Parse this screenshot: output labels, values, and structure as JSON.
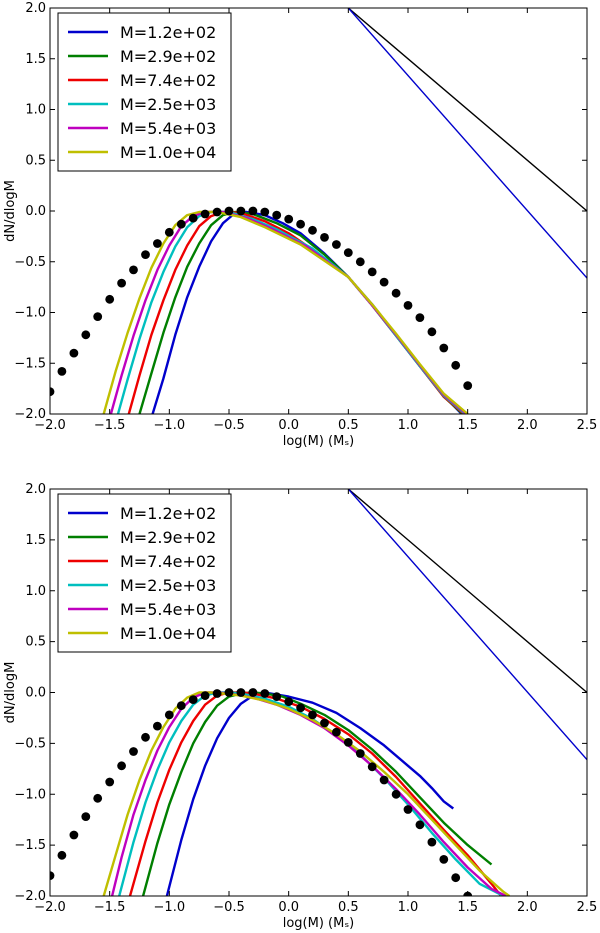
{
  "chart_data": [
    {
      "type": "line",
      "panel": "top",
      "xlabel": "log(M) (Mₛ)",
      "ylabel": "dN/dlogM",
      "xlim": [
        -2.0,
        2.5
      ],
      "ylim": [
        -2.0,
        2.0
      ],
      "xticks": [
        "−2.0",
        "−1.5",
        "−1.0",
        "−0.5",
        "0.0",
        "0.5",
        "1.0",
        "1.5",
        "2.0",
        "2.5"
      ],
      "yticks": [
        "2.0",
        "1.5",
        "1.0",
        "0.5",
        "0.0",
        "−0.5",
        "−1.0",
        "−1.5",
        "−2.0"
      ],
      "legend_position": "upper-left",
      "series": [
        {
          "name": "M=1.2e+02",
          "color": "#0000cc",
          "x": [
            -1.14,
            -1.05,
            -0.95,
            -0.85,
            -0.75,
            -0.65,
            -0.55,
            -0.45,
            -0.35,
            -0.2,
            -0.05,
            0.1,
            0.3,
            0.5,
            0.7,
            0.9,
            1.1,
            1.3,
            1.45
          ],
          "y": [
            -2.0,
            -1.65,
            -1.22,
            -0.85,
            -0.55,
            -0.3,
            -0.12,
            -0.02,
            -0.01,
            -0.04,
            -0.12,
            -0.22,
            -0.42,
            -0.65,
            -0.92,
            -1.22,
            -1.52,
            -1.82,
            -2.0
          ]
        },
        {
          "name": "M=2.9e+02",
          "color": "#007f00",
          "x": [
            -1.25,
            -1.15,
            -1.05,
            -0.95,
            -0.85,
            -0.75,
            -0.65,
            -0.55,
            -0.45,
            -0.3,
            -0.1,
            0.1,
            0.3,
            0.5,
            0.7,
            0.9,
            1.1,
            1.3,
            1.46
          ],
          "y": [
            -2.0,
            -1.6,
            -1.2,
            -0.85,
            -0.55,
            -0.32,
            -0.14,
            -0.04,
            -0.01,
            -0.03,
            -0.12,
            -0.24,
            -0.43,
            -0.65,
            -0.93,
            -1.23,
            -1.53,
            -1.83,
            -2.0
          ]
        },
        {
          "name": "M=7.4e+02",
          "color": "#ee0000",
          "x": [
            -1.34,
            -1.25,
            -1.15,
            -1.05,
            -0.95,
            -0.85,
            -0.75,
            -0.65,
            -0.55,
            -0.4,
            -0.2,
            0.0,
            0.2,
            0.5,
            0.7,
            0.9,
            1.1,
            1.3,
            1.47
          ],
          "y": [
            -2.0,
            -1.62,
            -1.22,
            -0.88,
            -0.58,
            -0.34,
            -0.15,
            -0.05,
            -0.01,
            -0.02,
            -0.1,
            -0.22,
            -0.38,
            -0.65,
            -0.93,
            -1.23,
            -1.53,
            -1.83,
            -2.0
          ]
        },
        {
          "name": "M=2.5e+03",
          "color": "#00bfbf",
          "x": [
            -1.43,
            -1.35,
            -1.25,
            -1.15,
            -1.05,
            -0.95,
            -0.85,
            -0.75,
            -0.65,
            -0.5,
            -0.3,
            -0.1,
            0.2,
            0.5,
            0.7,
            0.9,
            1.1,
            1.3,
            1.48
          ],
          "y": [
            -2.0,
            -1.66,
            -1.26,
            -0.9,
            -0.6,
            -0.35,
            -0.16,
            -0.05,
            -0.01,
            -0.01,
            -0.08,
            -0.18,
            -0.37,
            -0.65,
            -0.93,
            -1.23,
            -1.53,
            -1.82,
            -2.0
          ]
        },
        {
          "name": "M=5.4e+03",
          "color": "#bf00bf",
          "x": [
            -1.49,
            -1.4,
            -1.3,
            -1.2,
            -1.1,
            -1.0,
            -0.9,
            -0.8,
            -0.7,
            -0.55,
            -0.35,
            -0.15,
            0.15,
            0.5,
            0.7,
            0.9,
            1.1,
            1.3,
            1.49
          ],
          "y": [
            -2.0,
            -1.62,
            -1.23,
            -0.88,
            -0.58,
            -0.34,
            -0.15,
            -0.05,
            -0.01,
            -0.01,
            -0.07,
            -0.17,
            -0.35,
            -0.65,
            -0.93,
            -1.22,
            -1.52,
            -1.81,
            -2.0
          ]
        },
        {
          "name": "M=1.0e+04",
          "color": "#bfbf00",
          "x": [
            -1.55,
            -1.45,
            -1.35,
            -1.25,
            -1.15,
            -1.05,
            -0.95,
            -0.85,
            -0.75,
            -0.6,
            -0.4,
            -0.2,
            0.1,
            0.5,
            0.7,
            0.9,
            1.1,
            1.3,
            1.5
          ],
          "y": [
            -2.0,
            -1.58,
            -1.2,
            -0.86,
            -0.56,
            -0.32,
            -0.14,
            -0.04,
            -0.01,
            -0.01,
            -0.06,
            -0.16,
            -0.33,
            -0.65,
            -0.92,
            -1.21,
            -1.51,
            -1.8,
            -2.0
          ]
        }
      ],
      "reference_lines": [
        {
          "name": "black-reference-line",
          "color": "#000000",
          "x": [
            0.5,
            2.5
          ],
          "y": [
            2.0,
            0.0
          ]
        },
        {
          "name": "blue-reference-line",
          "color": "#0000cc",
          "x": [
            0.5,
            2.5
          ],
          "y": [
            2.0,
            -0.66
          ]
        }
      ],
      "dots": {
        "name": "black-dots",
        "x": [
          -2.0,
          -1.9,
          -1.8,
          -1.7,
          -1.6,
          -1.5,
          -1.4,
          -1.3,
          -1.2,
          -1.1,
          -1.0,
          -0.9,
          -0.8,
          -0.7,
          -0.6,
          -0.5,
          -0.4,
          -0.3,
          -0.2,
          -0.1,
          0.0,
          0.1,
          0.2,
          0.3,
          0.4,
          0.5,
          0.6,
          0.7,
          0.8,
          0.9,
          1.0,
          1.1,
          1.2,
          1.3,
          1.4,
          1.5
        ],
        "y": [
          -1.78,
          -1.58,
          -1.4,
          -1.22,
          -1.04,
          -0.87,
          -0.71,
          -0.58,
          -0.43,
          -0.32,
          -0.21,
          -0.13,
          -0.07,
          -0.03,
          -0.01,
          0.0,
          0.0,
          0.0,
          -0.01,
          -0.04,
          -0.08,
          -0.13,
          -0.19,
          -0.26,
          -0.33,
          -0.41,
          -0.5,
          -0.6,
          -0.7,
          -0.81,
          -0.93,
          -1.05,
          -1.19,
          -1.35,
          -1.52,
          -1.72
        ]
      }
    },
    {
      "type": "line",
      "panel": "bottom",
      "xlabel": "log(M) (Mₛ)",
      "ylabel": "dN/dlogM",
      "xlim": [
        -2.0,
        2.5
      ],
      "ylim": [
        -2.0,
        2.0
      ],
      "xticks": [
        "−2.0",
        "−1.5",
        "−1.0",
        "−0.5",
        "0.0",
        "0.5",
        "1.0",
        "1.5",
        "2.0",
        "2.5"
      ],
      "yticks": [
        "2.0",
        "1.5",
        "1.0",
        "0.5",
        "0.0",
        "−0.5",
        "−1.0",
        "−1.5",
        "−2.0"
      ],
      "legend_position": "upper-left",
      "series": [
        {
          "name": "M=1.2e+02",
          "color": "#0000cc",
          "x": [
            -1.02,
            -0.9,
            -0.8,
            -0.7,
            -0.6,
            -0.5,
            -0.4,
            -0.3,
            -0.2,
            -0.1,
            0.0,
            0.2,
            0.4,
            0.6,
            0.8,
            1.0,
            1.1,
            1.2,
            1.3,
            1.38
          ],
          "y": [
            -2.0,
            -1.45,
            -1.05,
            -0.72,
            -0.45,
            -0.25,
            -0.11,
            -0.03,
            0.0,
            -0.02,
            -0.04,
            -0.1,
            -0.2,
            -0.35,
            -0.52,
            -0.72,
            -0.82,
            -0.94,
            -1.07,
            -1.14
          ]
        },
        {
          "name": "M=2.9e+02",
          "color": "#007f00",
          "x": [
            -1.22,
            -1.1,
            -1.0,
            -0.9,
            -0.8,
            -0.7,
            -0.6,
            -0.5,
            -0.4,
            -0.3,
            -0.2,
            -0.05,
            0.1,
            0.3,
            0.5,
            0.7,
            0.9,
            1.1,
            1.3,
            1.5,
            1.7
          ],
          "y": [
            -2.0,
            -1.48,
            -1.1,
            -0.78,
            -0.5,
            -0.29,
            -0.13,
            -0.04,
            -0.01,
            0.0,
            -0.01,
            -0.04,
            -0.11,
            -0.22,
            -0.37,
            -0.56,
            -0.78,
            -1.03,
            -1.28,
            -1.5,
            -1.69
          ]
        },
        {
          "name": "M=7.4e+02",
          "color": "#ee0000",
          "x": [
            -1.33,
            -1.2,
            -1.1,
            -1.0,
            -0.9,
            -0.8,
            -0.7,
            -0.6,
            -0.5,
            -0.4,
            -0.3,
            -0.1,
            0.1,
            0.3,
            0.5,
            0.7,
            0.9,
            1.1,
            1.3,
            1.5,
            1.7,
            1.78
          ],
          "y": [
            -2.0,
            -1.46,
            -1.08,
            -0.76,
            -0.49,
            -0.28,
            -0.12,
            -0.03,
            0.0,
            0.0,
            -0.01,
            -0.06,
            -0.14,
            -0.26,
            -0.41,
            -0.6,
            -0.83,
            -1.09,
            -1.35,
            -1.6,
            -1.88,
            -2.0
          ]
        },
        {
          "name": "M=2.5e+03",
          "color": "#00bfbf",
          "x": [
            -1.42,
            -1.3,
            -1.2,
            -1.1,
            -1.0,
            -0.9,
            -0.8,
            -0.7,
            -0.6,
            -0.5,
            -0.4,
            -0.2,
            0.0,
            0.2,
            0.4,
            0.6,
            0.8,
            1.0,
            1.2,
            1.4,
            1.6,
            1.8
          ],
          "y": [
            -2.0,
            -1.47,
            -1.08,
            -0.76,
            -0.49,
            -0.28,
            -0.12,
            -0.03,
            0.0,
            0.0,
            -0.01,
            -0.06,
            -0.14,
            -0.26,
            -0.42,
            -0.61,
            -0.84,
            -1.1,
            -1.38,
            -1.64,
            -1.88,
            -2.0
          ]
        },
        {
          "name": "M=5.4e+03",
          "color": "#bf00bf",
          "x": [
            -1.48,
            -1.4,
            -1.3,
            -1.2,
            -1.1,
            -1.0,
            -0.9,
            -0.8,
            -0.7,
            -0.6,
            -0.5,
            -0.3,
            -0.1,
            0.1,
            0.3,
            0.5,
            0.7,
            0.9,
            1.1,
            1.3,
            1.5,
            1.7,
            1.82
          ],
          "y": [
            -2.0,
            -1.62,
            -1.2,
            -0.86,
            -0.57,
            -0.34,
            -0.16,
            -0.05,
            0.0,
            0.0,
            -0.01,
            -0.05,
            -0.12,
            -0.22,
            -0.35,
            -0.52,
            -0.72,
            -0.95,
            -1.2,
            -1.47,
            -1.72,
            -1.93,
            -2.0
          ]
        },
        {
          "name": "M=1.0e+04",
          "color": "#bfbf00",
          "x": [
            -1.55,
            -1.45,
            -1.35,
            -1.25,
            -1.15,
            -1.05,
            -0.95,
            -0.85,
            -0.75,
            -0.65,
            -0.55,
            -0.4,
            -0.2,
            0.0,
            0.2,
            0.4,
            0.6,
            0.8,
            1.0,
            1.2,
            1.4,
            1.6,
            1.8,
            1.85
          ],
          "y": [
            -2.0,
            -1.6,
            -1.2,
            -0.86,
            -0.57,
            -0.34,
            -0.16,
            -0.05,
            0.0,
            0.0,
            -0.01,
            -0.03,
            -0.08,
            -0.16,
            -0.27,
            -0.41,
            -0.58,
            -0.78,
            -1.0,
            -1.25,
            -1.5,
            -1.75,
            -1.96,
            -2.0
          ]
        }
      ],
      "reference_lines": [
        {
          "name": "black-reference-line",
          "color": "#000000",
          "x": [
            0.5,
            2.5
          ],
          "y": [
            2.0,
            0.0
          ]
        },
        {
          "name": "blue-reference-line",
          "color": "#0000cc",
          "x": [
            0.5,
            2.5
          ],
          "y": [
            2.0,
            -0.66
          ]
        }
      ],
      "dots": {
        "name": "black-dots",
        "x": [
          -2.0,
          -1.9,
          -1.8,
          -1.7,
          -1.6,
          -1.5,
          -1.4,
          -1.3,
          -1.2,
          -1.1,
          -1.0,
          -0.9,
          -0.8,
          -0.7,
          -0.6,
          -0.5,
          -0.4,
          -0.3,
          -0.2,
          -0.1,
          0.0,
          0.1,
          0.2,
          0.3,
          0.4,
          0.5,
          0.6,
          0.7,
          0.8,
          0.9,
          1.0,
          1.1,
          1.2,
          1.3,
          1.4,
          1.5
        ],
        "y": [
          -1.8,
          -1.6,
          -1.4,
          -1.22,
          -1.04,
          -0.88,
          -0.72,
          -0.58,
          -0.44,
          -0.33,
          -0.22,
          -0.13,
          -0.07,
          -0.03,
          -0.01,
          0.0,
          0.0,
          0.0,
          -0.01,
          -0.04,
          -0.09,
          -0.15,
          -0.22,
          -0.3,
          -0.39,
          -0.49,
          -0.6,
          -0.73,
          -0.86,
          -1.0,
          -1.15,
          -1.3,
          -1.47,
          -1.64,
          -1.82,
          -2.0
        ]
      }
    }
  ]
}
